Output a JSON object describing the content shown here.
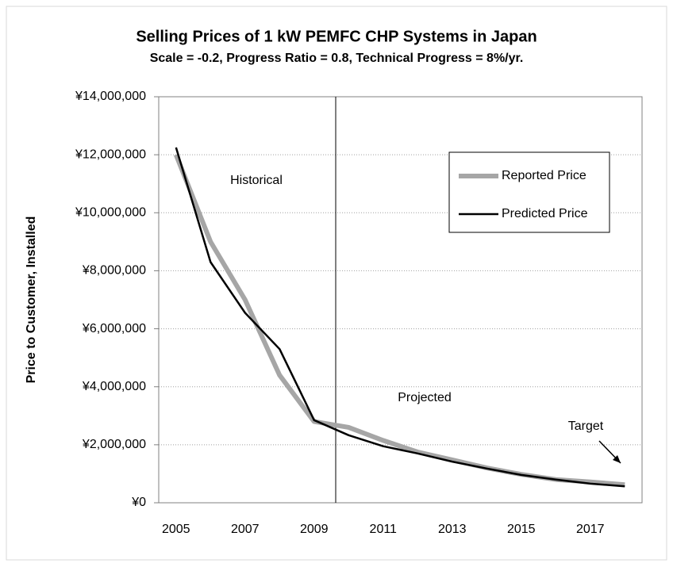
{
  "chart_data": {
    "type": "line",
    "title": "Selling Prices of 1 kW PEMFC CHP Systems in Japan",
    "subtitle": "Scale = -0.2, Progress Ratio = 0.8, Technical Progress = 8%/yr.",
    "y_label": "Price to Customer, Installed",
    "categories": [
      "2005",
      null,
      "2007",
      null,
      "2009",
      null,
      "2011",
      null,
      "2013",
      null,
      "2015",
      null,
      "2017",
      null
    ],
    "series": [
      {
        "name": "Reported Price",
        "color": "#a6a6a6",
        "values": [
          12000000,
          9000000,
          7000000,
          4400000,
          2800000,
          2600000,
          2150000,
          1750000,
          1480000,
          1200000,
          980000,
          800000,
          720000,
          620000
        ]
      },
      {
        "name": "Predicted Price",
        "color": "#000000",
        "values": [
          12250000,
          8300000,
          6550000,
          5300000,
          2850000,
          2330000,
          1950000,
          1700000,
          1420000,
          1180000,
          960000,
          800000,
          660000,
          570000
        ]
      }
    ],
    "ylim": [
      0,
      14000000
    ],
    "yticks": [
      {
        "value": 0,
        "label": "¥0"
      },
      {
        "value": 2000000,
        "label": "¥2,000,000"
      },
      {
        "value": 4000000,
        "label": "¥4,000,000"
      },
      {
        "value": 6000000,
        "label": "¥6,000,000"
      },
      {
        "value": 8000000,
        "label": "¥8,000,000"
      },
      {
        "value": 10000000,
        "label": "¥10,000,000"
      },
      {
        "value": 12000000,
        "label": "¥12,000,000"
      },
      {
        "value": 14000000,
        "label": "¥14,000,000"
      }
    ],
    "grid": true,
    "annotations": [
      "Historical",
      "Projected",
      "Target"
    ]
  }
}
